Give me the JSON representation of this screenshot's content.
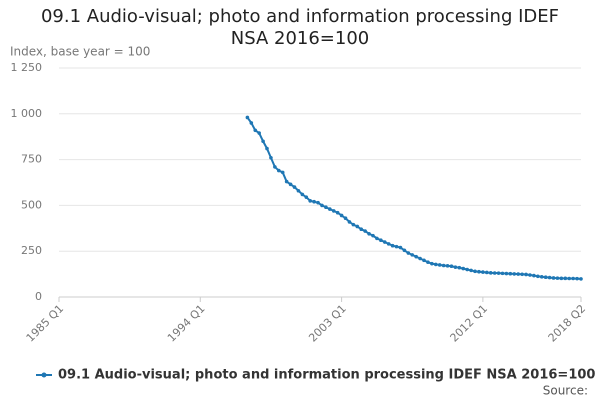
{
  "chart_data": {
    "type": "line",
    "title": "09.1 Audio-visual; photo and information processing IDEF NSA 2016=100",
    "y_label": "Index, base year = 100",
    "source": "Source:",
    "categories": [
      "1985 Q1",
      null,
      null,
      null,
      null,
      null,
      null,
      null,
      null,
      null,
      null,
      null,
      null,
      null,
      null,
      null,
      null,
      null,
      null,
      null,
      null,
      null,
      null,
      null,
      null,
      null,
      null,
      null,
      null,
      null,
      null,
      null,
      null,
      null,
      null,
      null,
      "1994 Q1",
      null,
      null,
      null,
      null,
      null,
      null,
      null,
      null,
      null,
      null,
      null,
      null,
      null,
      null,
      null,
      null,
      null,
      null,
      null,
      null,
      null,
      null,
      null,
      null,
      null,
      null,
      null,
      null,
      null,
      null,
      null,
      null,
      null,
      null,
      null,
      "2003 Q1",
      null,
      null,
      null,
      null,
      null,
      null,
      null,
      null,
      null,
      null,
      null,
      null,
      null,
      null,
      null,
      null,
      null,
      null,
      null,
      null,
      null,
      null,
      null,
      null,
      null,
      null,
      null,
      null,
      null,
      null,
      null,
      null,
      null,
      null,
      null,
      "2012 Q1",
      null,
      null,
      null,
      null,
      null,
      null,
      null,
      null,
      null,
      null,
      null,
      null,
      null,
      null,
      null,
      null,
      null,
      null,
      null,
      null,
      null,
      null,
      null,
      null,
      "2018 Q2"
    ],
    "series": [
      {
        "name": "09.1 Audio-visual; photo and information processing IDEF NSA 2016=100",
        "color": "#1f77b4",
        "values": [
          null,
          null,
          null,
          null,
          null,
          null,
          null,
          null,
          null,
          null,
          null,
          null,
          null,
          null,
          null,
          null,
          null,
          null,
          null,
          null,
          null,
          null,
          null,
          null,
          null,
          null,
          null,
          null,
          null,
          null,
          null,
          null,
          null,
          null,
          null,
          null,
          null,
          null,
          null,
          null,
          null,
          null,
          null,
          null,
          null,
          null,
          null,
          null,
          980,
          950,
          910,
          895,
          850,
          810,
          760,
          710,
          690,
          680,
          630,
          615,
          600,
          580,
          560,
          545,
          525,
          520,
          515,
          500,
          490,
          480,
          470,
          460,
          445,
          430,
          410,
          395,
          385,
          370,
          360,
          345,
          335,
          320,
          310,
          300,
          290,
          280,
          275,
          270,
          255,
          240,
          230,
          220,
          210,
          200,
          190,
          182,
          178,
          175,
          172,
          170,
          168,
          163,
          160,
          155,
          150,
          145,
          140,
          138,
          136,
          134,
          132,
          131,
          130,
          129,
          128,
          127,
          126,
          125,
          124,
          123,
          120,
          117,
          113,
          110,
          108,
          106,
          104,
          103,
          102,
          102,
          101,
          101,
          100,
          99
        ]
      }
    ],
    "ylim": [
      0,
      1250
    ],
    "yticks": [
      0,
      250,
      500,
      750,
      {
        "value": 1000,
        "label": "1 000"
      },
      {
        "value": 1250,
        "label": "1 250"
      }
    ],
    "grid": true
  }
}
